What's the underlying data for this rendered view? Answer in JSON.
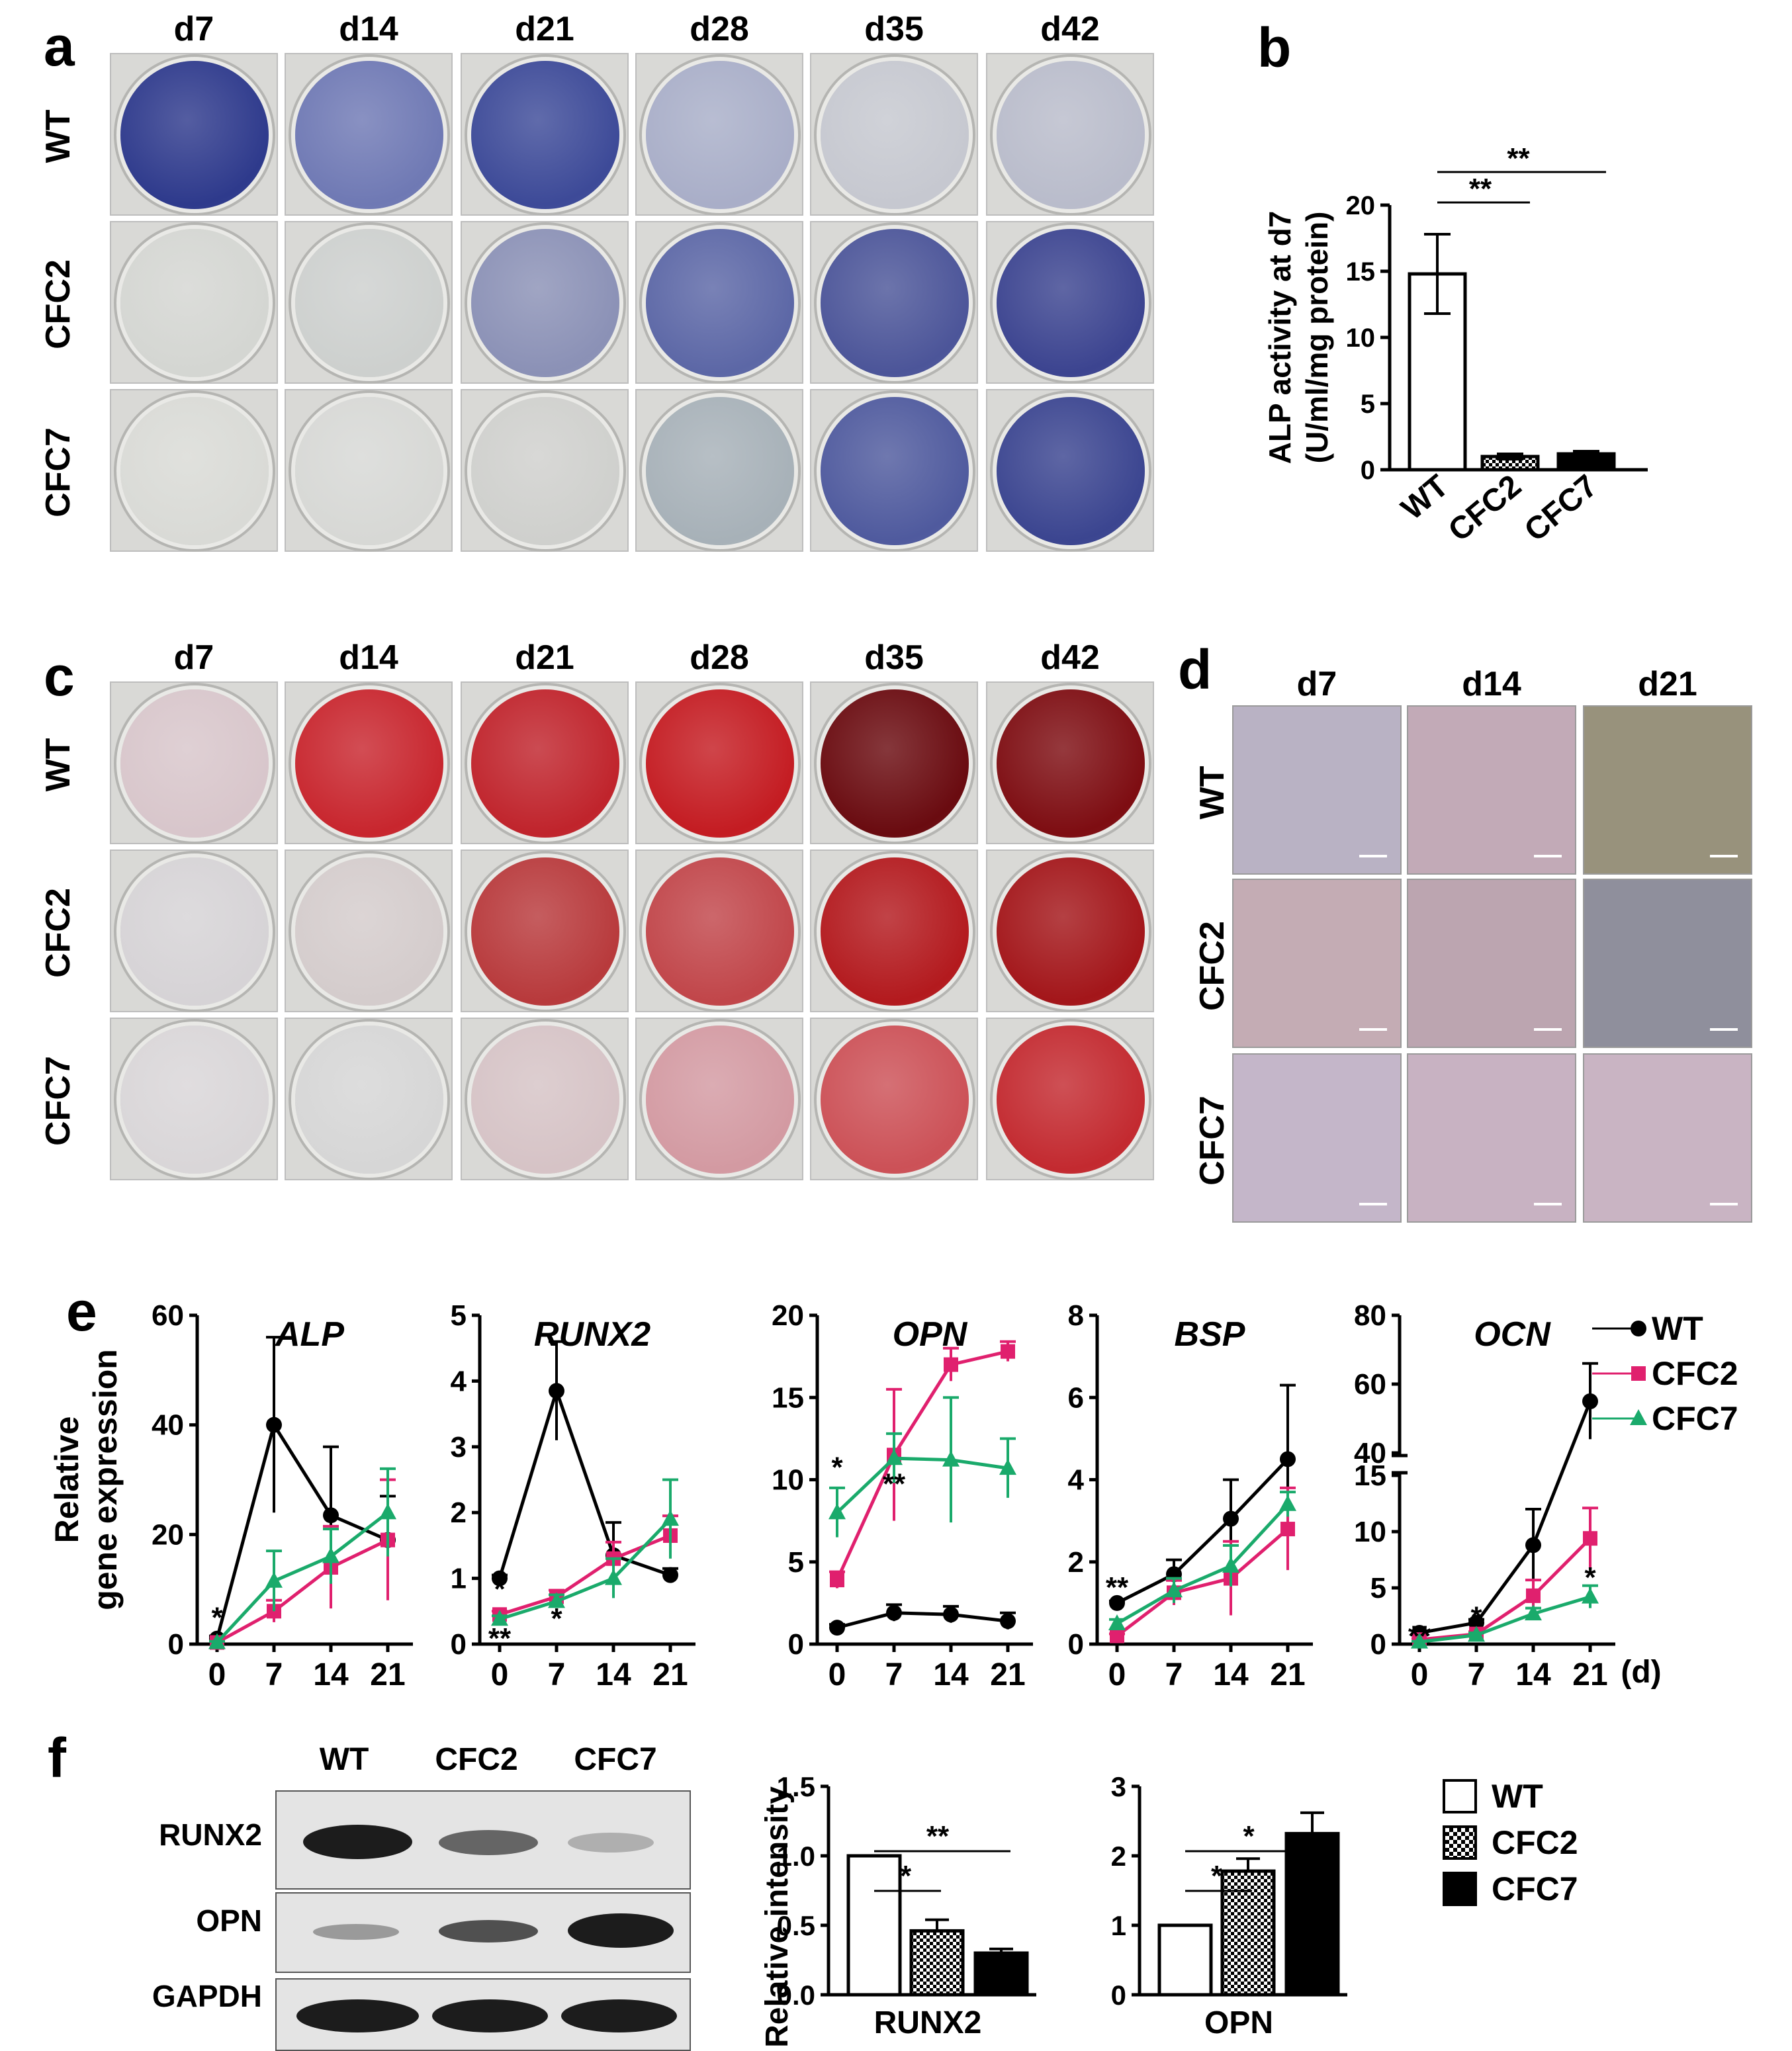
{
  "panel_labels": {
    "a": "a",
    "b": "b",
    "c": "c",
    "d": "d",
    "e": "e",
    "f": "f"
  },
  "panel_a": {
    "days": [
      "d7",
      "d14",
      "d21",
      "d28",
      "d35",
      "d42"
    ],
    "rows": [
      "WT",
      "CFC2",
      "CFC7"
    ],
    "stain": "ALP",
    "colors": [
      [
        "#2e3a8c",
        "#6f79b4",
        "#3d4a98",
        "#a9aec8",
        "#c6c8d0",
        "#b9bccb"
      ],
      [
        "#d4d6d2",
        "#cdd0ce",
        "#8b91b6",
        "#5c67a6",
        "#4c5599",
        "#3c4490"
      ],
      [
        "#d9dad6",
        "#d7d8d5",
        "#cfd0cd",
        "#a7b1b8",
        "#4f5a9e",
        "#3b4590"
      ]
    ]
  },
  "panel_b": {
    "chart_data": {
      "type": "bar",
      "categories": [
        "WT",
        "CFC2",
        "CFC7"
      ],
      "values": [
        14.8,
        1.0,
        1.2
      ],
      "errors": [
        3.0,
        0.2,
        0.2
      ],
      "ylabel_line1": "ALP activity at d7",
      "ylabel_line2": "(U/ml/mg protein)",
      "ylim": [
        0,
        20
      ],
      "yticks": [
        "0",
        "5",
        "10",
        "15",
        "20"
      ],
      "significance": [
        "**",
        "**"
      ],
      "bar_styles": [
        "open",
        "checker",
        "solid"
      ]
    }
  },
  "panel_c": {
    "days": [
      "d7",
      "d14",
      "d21",
      "d28",
      "d35",
      "d42"
    ],
    "rows": [
      "WT",
      "CFC2",
      "CFC7"
    ],
    "stain": "Alizarin red",
    "colors": [
      [
        "#d8c6cb",
        "#c8262e",
        "#c0242c",
        "#c41c22",
        "#6a0b10",
        "#7e0d12"
      ],
      [
        "#d6d3d6",
        "#d4cccc",
        "#b83a3c",
        "#c1464a",
        "#b31a1e",
        "#a3161a"
      ],
      [
        "#d9d6d8",
        "#d6d6d6",
        "#d6c3c6",
        "#d39aa2",
        "#cc5157",
        "#c32a30"
      ]
    ]
  },
  "panel_d": {
    "days": [
      "d7",
      "d14",
      "d21"
    ],
    "rows": [
      "WT",
      "CFC2",
      "CFC7"
    ],
    "colors": [
      [
        "#b9b2c4",
        "#c2aab7",
        "#98927c"
      ],
      [
        "#c4acb4",
        "#bca5b0",
        "#8f8f9c"
      ],
      [
        "#c4b6c9",
        "#c8b2c2",
        "#c9b4c3"
      ]
    ]
  },
  "panel_e": {
    "ylabel_line1": "Relative",
    "ylabel_line2": "gene expression",
    "x_unit": "(d)",
    "legend": [
      "WT",
      "CFC2",
      "CFC7"
    ],
    "series_colors": [
      "#000000",
      "#e0206e",
      "#1aaa6b"
    ],
    "chart_data": [
      {
        "type": "line",
        "title": "ALP",
        "x": [
          0,
          7,
          14,
          21
        ],
        "xticks": [
          "0",
          "7",
          "14",
          "21"
        ],
        "ylim": [
          0,
          60
        ],
        "yticks": [
          "0",
          "20",
          "40",
          "60"
        ],
        "series": [
          {
            "name": "WT",
            "values": [
              1,
              40,
              23.5,
              19
            ],
            "errors": [
              0.5,
              16,
              12.5,
              8
            ]
          },
          {
            "name": "CFC2",
            "values": [
              0.3,
              6,
              14,
              19
            ],
            "errors": [
              0.2,
              2,
              7.5,
              11
            ]
          },
          {
            "name": "CFC7",
            "values": [
              0.3,
              11.5,
              16,
              24
            ],
            "errors": [
              0.2,
              5.5,
              5,
              8
            ]
          }
        ],
        "annotations": [
          {
            "x": 0,
            "y": 5,
            "text": "*"
          }
        ]
      },
      {
        "type": "line",
        "title": "RUNX2",
        "x": [
          0,
          7,
          14,
          21
        ],
        "xticks": [
          "0",
          "7",
          "14",
          "21"
        ],
        "ylim": [
          0,
          5
        ],
        "yticks": [
          "0",
          "1",
          "2",
          "3",
          "4",
          "5"
        ],
        "series": [
          {
            "name": "WT",
            "values": [
              1,
              3.85,
              1.35,
              1.05
            ],
            "errors": [
              0.05,
              0.75,
              0.5,
              0.1
            ]
          },
          {
            "name": "CFC2",
            "values": [
              0.45,
              0.72,
              1.3,
              1.65
            ],
            "errors": [
              0.05,
              0.1,
              0.25,
              0.3
            ]
          },
          {
            "name": "CFC7",
            "values": [
              0.38,
              0.65,
              1.0,
              1.9
            ],
            "errors": [
              0.05,
              0.1,
              0.3,
              0.6
            ]
          }
        ],
        "annotations": [
          {
            "x": 0,
            "y": 0.85,
            "text": "*"
          },
          {
            "x": 0,
            "y": 0.1,
            "text": "**"
          },
          {
            "x": 7,
            "y": 0.4,
            "text": "*"
          }
        ]
      },
      {
        "type": "line",
        "title": "OPN",
        "x": [
          0,
          7,
          14,
          21
        ],
        "xticks": [
          "0",
          "7",
          "14",
          "21"
        ],
        "ylim": [
          0,
          20
        ],
        "yticks": [
          "0",
          "5",
          "10",
          "15",
          "20"
        ],
        "series": [
          {
            "name": "WT",
            "values": [
              1,
              1.9,
              1.8,
              1.4
            ],
            "errors": [
              0.2,
              0.5,
              0.5,
              0.5
            ]
          },
          {
            "name": "CFC2",
            "values": [
              3.9,
              11.5,
              17,
              17.8
            ],
            "errors": [
              0.5,
              4,
              1,
              0.6
            ]
          },
          {
            "name": "CFC7",
            "values": [
              8,
              11.3,
              11.2,
              10.7
            ],
            "errors": [
              1.5,
              1.5,
              3.8,
              1.8
            ]
          }
        ],
        "annotations": [
          {
            "x": 0,
            "y": 10.8,
            "text": "*"
          },
          {
            "x": 7,
            "y": 9.8,
            "text": "**"
          }
        ]
      },
      {
        "type": "line",
        "title": "BSP",
        "x": [
          0,
          7,
          14,
          21
        ],
        "xticks": [
          "0",
          "7",
          "14",
          "21"
        ],
        "ylim": [
          0,
          8
        ],
        "yticks": [
          "0",
          "2",
          "4",
          "6",
          "8"
        ],
        "series": [
          {
            "name": "WT",
            "values": [
              1,
              1.7,
              3.05,
              4.5
            ],
            "errors": [
              0.05,
              0.35,
              0.95,
              1.8
            ]
          },
          {
            "name": "CFC2",
            "values": [
              0.2,
              1.25,
              1.6,
              2.8
            ],
            "errors": [
              0.05,
              0.3,
              0.9,
              1.0
            ]
          },
          {
            "name": "CFC7",
            "values": [
              0.5,
              1.3,
              1.9,
              3.4
            ],
            "errors": [
              0.1,
              0.3,
              0.5,
              0.3
            ]
          }
        ],
        "annotations": [
          {
            "x": 0,
            "y": 1.4,
            "text": "**"
          }
        ]
      },
      {
        "type": "line",
        "title": "OCN",
        "x": [
          0,
          7,
          14,
          21
        ],
        "xticks": [
          "0",
          "7",
          "14",
          "21"
        ],
        "ylim_lower": [
          0,
          15
        ],
        "ylim_upper": [
          40,
          80
        ],
        "yticks": [
          "0",
          "5",
          "10",
          "15",
          "40",
          "60",
          "80"
        ],
        "series": [
          {
            "name": "WT",
            "values": [
              1,
              1.9,
              8.8,
              55
            ],
            "errors": [
              0.1,
              0.3,
              3.2,
              11
            ]
          },
          {
            "name": "CFC2",
            "values": [
              0.4,
              0.9,
              4.3,
              9.4
            ],
            "errors": [
              0.1,
              0.2,
              1.4,
              2.7
            ]
          },
          {
            "name": "CFC7",
            "values": [
              0.2,
              0.8,
              2.7,
              4.2
            ],
            "errors": [
              0.05,
              0.2,
              0.5,
              1.0
            ]
          }
        ],
        "annotations": [
          {
            "x": 0,
            "y": 0.8,
            "text": "**"
          },
          {
            "x": 7,
            "y": 2.5,
            "text": "*"
          },
          {
            "x": 21,
            "y": 6.0,
            "text": "*"
          }
        ]
      }
    ]
  },
  "panel_f": {
    "blot": {
      "columns": [
        "WT",
        "CFC2",
        "CFC7"
      ],
      "rows": [
        "RUNX2",
        "OPN",
        "GAPDH"
      ]
    },
    "ylabel": "Relative intensity",
    "legend": [
      "WT",
      "CFC2",
      "CFC7"
    ],
    "chart_data": [
      {
        "type": "bar",
        "xlabel": "RUNX2",
        "categories": [
          "WT",
          "CFC2",
          "CFC7"
        ],
        "values": [
          1.0,
          0.46,
          0.3
        ],
        "errors": [
          0,
          0.08,
          0.03
        ],
        "ylim": [
          0,
          1.5
        ],
        "yticks": [
          "0.0",
          "0.5",
          "1.0",
          "1.5"
        ],
        "significance": [
          "*",
          "**"
        ]
      },
      {
        "type": "bar",
        "xlabel": "OPN",
        "categories": [
          "WT",
          "CFC2",
          "CFC7"
        ],
        "values": [
          1.0,
          1.78,
          2.32
        ],
        "errors": [
          0,
          0.18,
          0.3
        ],
        "ylim": [
          0,
          3
        ],
        "yticks": [
          "0",
          "1",
          "2",
          "3"
        ],
        "significance": [
          "*",
          "*"
        ]
      }
    ]
  }
}
